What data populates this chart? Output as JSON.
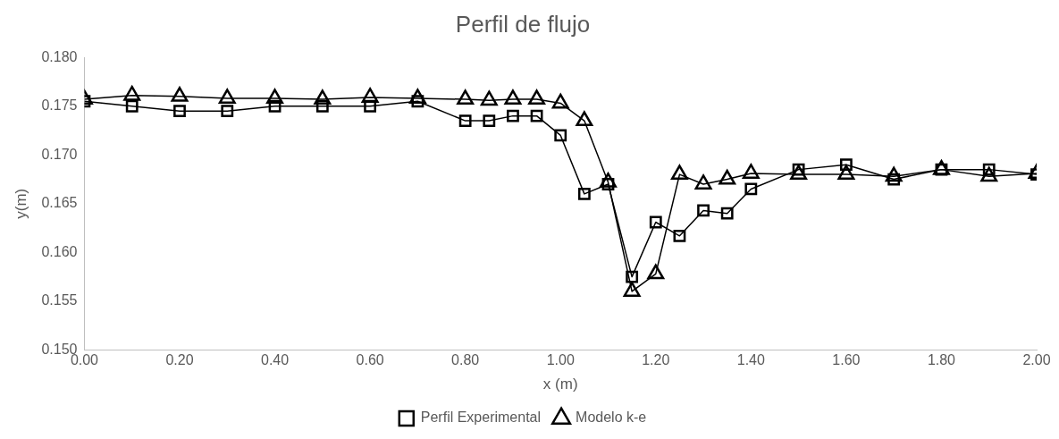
{
  "chart_data": {
    "type": "line",
    "title": "Perfil de flujo",
    "xlabel": "x (m)",
    "ylabel": "y(m)",
    "x": [
      0,
      0.1,
      0.2,
      0.3,
      0.4,
      0.5,
      0.6,
      0.7,
      0.8,
      0.85,
      0.9,
      0.95,
      1.0,
      1.05,
      1.1,
      1.15,
      1.2,
      1.25,
      1.3,
      1.35,
      1.4,
      1.5,
      1.6,
      1.7,
      1.8,
      1.9,
      2.0
    ],
    "series": [
      {
        "name": "Perfil Experimental",
        "color": "#000000",
        "marker": "square",
        "values": [
          0.1755,
          0.175,
          0.1745,
          0.1745,
          0.175,
          0.175,
          0.175,
          0.1755,
          0.1735,
          0.1735,
          0.174,
          0.174,
          0.172,
          0.166,
          0.167,
          0.1575,
          0.1631,
          0.1617,
          0.1643,
          0.164,
          0.1665,
          0.1685,
          0.169,
          0.1675,
          0.1685,
          0.1685,
          0.168
        ]
      },
      {
        "name": "Modelo k-e",
        "color": "#000000",
        "marker": "triangle",
        "values": [
          0.1757,
          0.1761,
          0.176,
          0.1758,
          0.1758,
          0.1757,
          0.1759,
          0.1758,
          0.1757,
          0.1756,
          0.1757,
          0.1757,
          0.1753,
          0.1735,
          0.1672,
          0.156,
          0.1578,
          0.168,
          0.167,
          0.1675,
          0.1681,
          0.168,
          0.168,
          0.1678,
          0.1685,
          0.1678,
          0.1681
        ]
      }
    ],
    "xlim": [
      0,
      2
    ],
    "xticks": [
      {
        "value": 0,
        "label": "0.00"
      },
      {
        "value": 0.2,
        "label": "0.20"
      },
      {
        "value": 0.4,
        "label": "0.40"
      },
      {
        "value": 0.6,
        "label": "0.60"
      },
      {
        "value": 0.8,
        "label": "0.80"
      },
      {
        "value": 1,
        "label": "1.00"
      },
      {
        "value": 1.2,
        "label": "1.20"
      },
      {
        "value": 1.4,
        "label": "1.40"
      },
      {
        "value": 1.6,
        "label": "1.60"
      },
      {
        "value": 1.8,
        "label": "1.80"
      },
      {
        "value": 2,
        "label": "2.00"
      }
    ],
    "ylim": [
      0.15,
      0.18
    ],
    "yticks": [
      {
        "value": 0.15,
        "label": "0.150"
      },
      {
        "value": 0.155,
        "label": "0.155"
      },
      {
        "value": 0.16,
        "label": "0.160"
      },
      {
        "value": 0.165,
        "label": "0.165"
      },
      {
        "value": 0.17,
        "label": "0.170"
      },
      {
        "value": 0.175,
        "label": "0.175"
      },
      {
        "value": 0.18,
        "label": "0.180"
      }
    ],
    "grid": false,
    "legend": "bottom",
    "line_style": "solid"
  }
}
